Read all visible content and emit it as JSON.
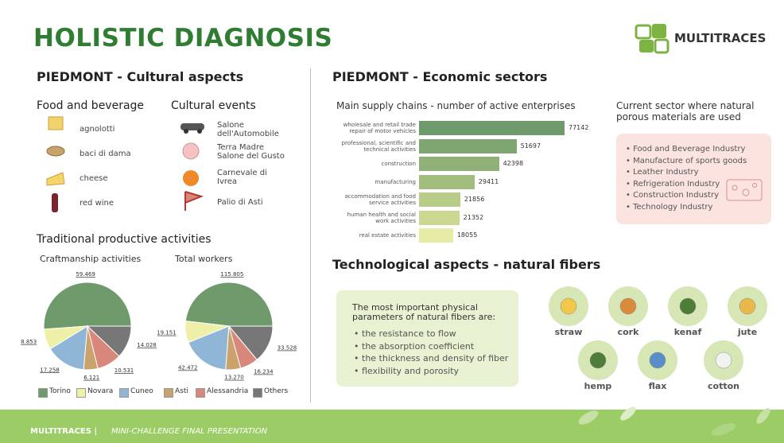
{
  "header": {
    "title": "HOLISTIC DIAGNOSIS",
    "logo": "MULTITRACES"
  },
  "cultural": {
    "heading": "PIEDMONT - Cultural aspects",
    "food_heading": "Food and beverage",
    "food": [
      "agnolotti",
      "baci di dama",
      "cheese",
      "red wine"
    ],
    "events_heading": "Cultural events",
    "events": [
      "Salone\ndell'Automobile",
      "Terra Madre\nSalone del Gusto",
      "Carnevale di\nIvrea",
      "Palio di Asti"
    ],
    "productive_heading": "Traditional productive activities"
  },
  "economic": {
    "heading": "PIEDMONT - Economic sectors",
    "sector_heading": "Current sector where natural\nporous materials are used",
    "sectors": [
      "Food and Beverage Industry",
      "Manufacture of sports goods",
      "Leather Industry",
      "Refrigeration Industry",
      "Construction Industry",
      "Technology Industry"
    ]
  },
  "technological": {
    "heading": "Technological aspects - natural fibers",
    "intro": "The most important physical\nparameters of natural fibers are:",
    "parameters": [
      "the resistance to flow",
      "the absorption coefficient",
      "the thickness and density of fiber",
      "flexibility and porosity"
    ],
    "fibers": [
      "straw",
      "cork",
      "kenaf",
      "jute",
      "hemp",
      "flax",
      "cotton"
    ]
  },
  "footer": {
    "brand": "MULTITRACES |",
    "text": "MINI-CHALLENGE FINAL PRESENTATION"
  },
  "chart_data": [
    {
      "type": "bar",
      "orientation": "horizontal",
      "title": "Main supply chains - number of active enterprises",
      "categories": [
        "wholesale and retail trade\nrepair of motor vehicles",
        "professional, scientific and\ntechnical activities",
        "construction",
        "manufacturing",
        "accommodation and food\nservice activities",
        "human health and social\nwork activities",
        "real estate activities"
      ],
      "values": [
        77142,
        51697,
        42398,
        29411,
        21856,
        21352,
        18055
      ],
      "colors": [
        "#6f9a6c",
        "#7fa571",
        "#8fb077",
        "#a3bd7e",
        "#b8cb88",
        "#cbd892",
        "#e6eba6"
      ]
    },
    {
      "type": "pie",
      "title": "Craftmanship activities",
      "categories": [
        "Torino",
        "Novara",
        "Cuneo",
        "Asti",
        "Alessandria",
        "Others"
      ],
      "values": [
        59469,
        8853,
        17258,
        6121,
        10531,
        14028
      ],
      "value_labels": [
        "59.469",
        "8.853",
        "17.258",
        "6.121",
        "10.531",
        "14.028"
      ],
      "colors": [
        "#6f9a6c",
        "#eef0a8",
        "#8fb6d6",
        "#c9a36b",
        "#d9877a",
        "#777777"
      ]
    },
    {
      "type": "pie",
      "title": "Total workers",
      "categories": [
        "Torino",
        "Novara",
        "Cuneo",
        "Asti",
        "Alessandria",
        "Others"
      ],
      "values": [
        115805,
        19151,
        42472,
        13270,
        16234,
        33528
      ],
      "value_labels": [
        "115.805",
        "19.151",
        "42.472",
        "13.270",
        "16.234",
        "33.528"
      ],
      "colors": [
        "#6f9a6c",
        "#eef0a8",
        "#8fb6d6",
        "#c9a36b",
        "#d9877a",
        "#777777"
      ]
    }
  ]
}
